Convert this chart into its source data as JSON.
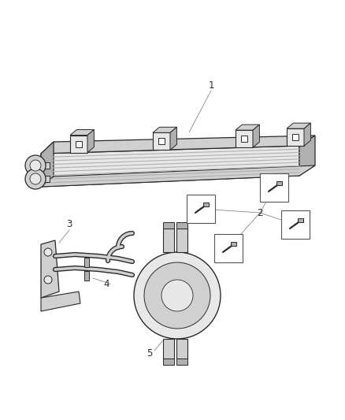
{
  "bg_color": "#ffffff",
  "lc": "#4a4a4a",
  "dark": "#2a2a2a",
  "gray1": "#b0b0b0",
  "gray2": "#d0d0d0",
  "gray3": "#e8e8e8",
  "gray4": "#909090",
  "figsize": [
    4.38,
    5.33
  ],
  "dpi": 100
}
